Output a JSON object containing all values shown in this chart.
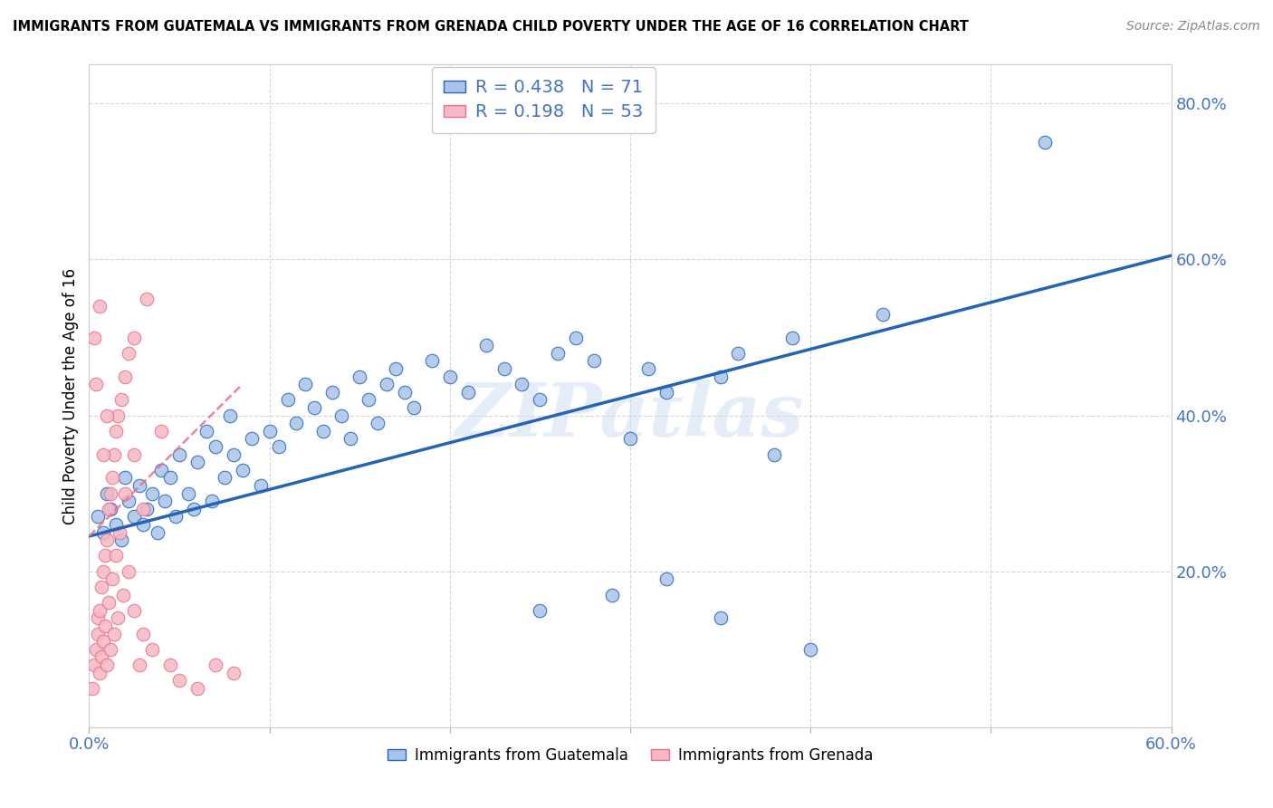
{
  "title": "IMMIGRANTS FROM GUATEMALA VS IMMIGRANTS FROM GRENADA CHILD POVERTY UNDER THE AGE OF 16 CORRELATION CHART",
  "source": "Source: ZipAtlas.com",
  "ylabel": "Child Poverty Under the Age of 16",
  "xlim": [
    0.0,
    0.6
  ],
  "ylim": [
    0.0,
    0.85
  ],
  "x_ticks": [
    0.0,
    0.1,
    0.2,
    0.3,
    0.4,
    0.5,
    0.6
  ],
  "y_ticks": [
    0.0,
    0.2,
    0.4,
    0.6,
    0.8
  ],
  "R_guatemala": 0.438,
  "N_guatemala": 71,
  "R_grenada": 0.198,
  "N_grenada": 53,
  "color_guatemala": "#a8c4e8",
  "color_grenada": "#f5b8c4",
  "trendline_color_guatemala": "#2563b8",
  "trendline_color_grenada": "#e8708a",
  "watermark": "ZIPatlas",
  "guat_trend_x0": 0.0,
  "guat_trend_x1": 0.6,
  "guat_trend_y0": 0.245,
  "guat_trend_y1": 0.605,
  "gren_trend_x0": 0.0,
  "gren_trend_x1": 0.085,
  "gren_trend_y0": 0.245,
  "gren_trend_y1": 0.44,
  "guatemala_points": [
    [
      0.005,
      0.27
    ],
    [
      0.008,
      0.25
    ],
    [
      0.01,
      0.3
    ],
    [
      0.012,
      0.28
    ],
    [
      0.015,
      0.26
    ],
    [
      0.018,
      0.24
    ],
    [
      0.02,
      0.32
    ],
    [
      0.022,
      0.29
    ],
    [
      0.025,
      0.27
    ],
    [
      0.028,
      0.31
    ],
    [
      0.03,
      0.26
    ],
    [
      0.032,
      0.28
    ],
    [
      0.035,
      0.3
    ],
    [
      0.038,
      0.25
    ],
    [
      0.04,
      0.33
    ],
    [
      0.042,
      0.29
    ],
    [
      0.045,
      0.32
    ],
    [
      0.048,
      0.27
    ],
    [
      0.05,
      0.35
    ],
    [
      0.055,
      0.3
    ],
    [
      0.058,
      0.28
    ],
    [
      0.06,
      0.34
    ],
    [
      0.065,
      0.38
    ],
    [
      0.068,
      0.29
    ],
    [
      0.07,
      0.36
    ],
    [
      0.075,
      0.32
    ],
    [
      0.078,
      0.4
    ],
    [
      0.08,
      0.35
    ],
    [
      0.085,
      0.33
    ],
    [
      0.09,
      0.37
    ],
    [
      0.095,
      0.31
    ],
    [
      0.1,
      0.38
    ],
    [
      0.105,
      0.36
    ],
    [
      0.11,
      0.42
    ],
    [
      0.115,
      0.39
    ],
    [
      0.12,
      0.44
    ],
    [
      0.125,
      0.41
    ],
    [
      0.13,
      0.38
    ],
    [
      0.135,
      0.43
    ],
    [
      0.14,
      0.4
    ],
    [
      0.145,
      0.37
    ],
    [
      0.15,
      0.45
    ],
    [
      0.155,
      0.42
    ],
    [
      0.16,
      0.39
    ],
    [
      0.165,
      0.44
    ],
    [
      0.17,
      0.46
    ],
    [
      0.175,
      0.43
    ],
    [
      0.18,
      0.41
    ],
    [
      0.19,
      0.47
    ],
    [
      0.2,
      0.45
    ],
    [
      0.21,
      0.43
    ],
    [
      0.22,
      0.49
    ],
    [
      0.23,
      0.46
    ],
    [
      0.24,
      0.44
    ],
    [
      0.25,
      0.42
    ],
    [
      0.26,
      0.48
    ],
    [
      0.27,
      0.5
    ],
    [
      0.28,
      0.47
    ],
    [
      0.3,
      0.37
    ],
    [
      0.31,
      0.46
    ],
    [
      0.32,
      0.43
    ],
    [
      0.35,
      0.45
    ],
    [
      0.36,
      0.48
    ],
    [
      0.38,
      0.35
    ],
    [
      0.39,
      0.5
    ],
    [
      0.25,
      0.15
    ],
    [
      0.29,
      0.17
    ],
    [
      0.32,
      0.19
    ],
    [
      0.35,
      0.14
    ],
    [
      0.4,
      0.1
    ],
    [
      0.44,
      0.53
    ],
    [
      0.53,
      0.75
    ]
  ],
  "grenada_points": [
    [
      0.002,
      0.05
    ],
    [
      0.003,
      0.08
    ],
    [
      0.004,
      0.1
    ],
    [
      0.005,
      0.12
    ],
    [
      0.005,
      0.14
    ],
    [
      0.006,
      0.07
    ],
    [
      0.006,
      0.15
    ],
    [
      0.007,
      0.09
    ],
    [
      0.007,
      0.18
    ],
    [
      0.008,
      0.11
    ],
    [
      0.008,
      0.2
    ],
    [
      0.009,
      0.13
    ],
    [
      0.009,
      0.22
    ],
    [
      0.01,
      0.08
    ],
    [
      0.01,
      0.24
    ],
    [
      0.011,
      0.16
    ],
    [
      0.011,
      0.28
    ],
    [
      0.012,
      0.1
    ],
    [
      0.012,
      0.3
    ],
    [
      0.013,
      0.19
    ],
    [
      0.013,
      0.32
    ],
    [
      0.014,
      0.12
    ],
    [
      0.014,
      0.35
    ],
    [
      0.015,
      0.22
    ],
    [
      0.015,
      0.38
    ],
    [
      0.016,
      0.14
    ],
    [
      0.016,
      0.4
    ],
    [
      0.017,
      0.25
    ],
    [
      0.018,
      0.42
    ],
    [
      0.019,
      0.17
    ],
    [
      0.02,
      0.45
    ],
    [
      0.02,
      0.3
    ],
    [
      0.022,
      0.48
    ],
    [
      0.022,
      0.2
    ],
    [
      0.025,
      0.5
    ],
    [
      0.025,
      0.35
    ],
    [
      0.028,
      0.08
    ],
    [
      0.03,
      0.28
    ],
    [
      0.032,
      0.55
    ],
    [
      0.035,
      0.1
    ],
    [
      0.04,
      0.38
    ],
    [
      0.003,
      0.5
    ],
    [
      0.004,
      0.44
    ],
    [
      0.006,
      0.54
    ],
    [
      0.008,
      0.35
    ],
    [
      0.01,
      0.4
    ],
    [
      0.025,
      0.15
    ],
    [
      0.03,
      0.12
    ],
    [
      0.045,
      0.08
    ],
    [
      0.05,
      0.06
    ],
    [
      0.06,
      0.05
    ],
    [
      0.07,
      0.08
    ],
    [
      0.08,
      0.07
    ]
  ]
}
